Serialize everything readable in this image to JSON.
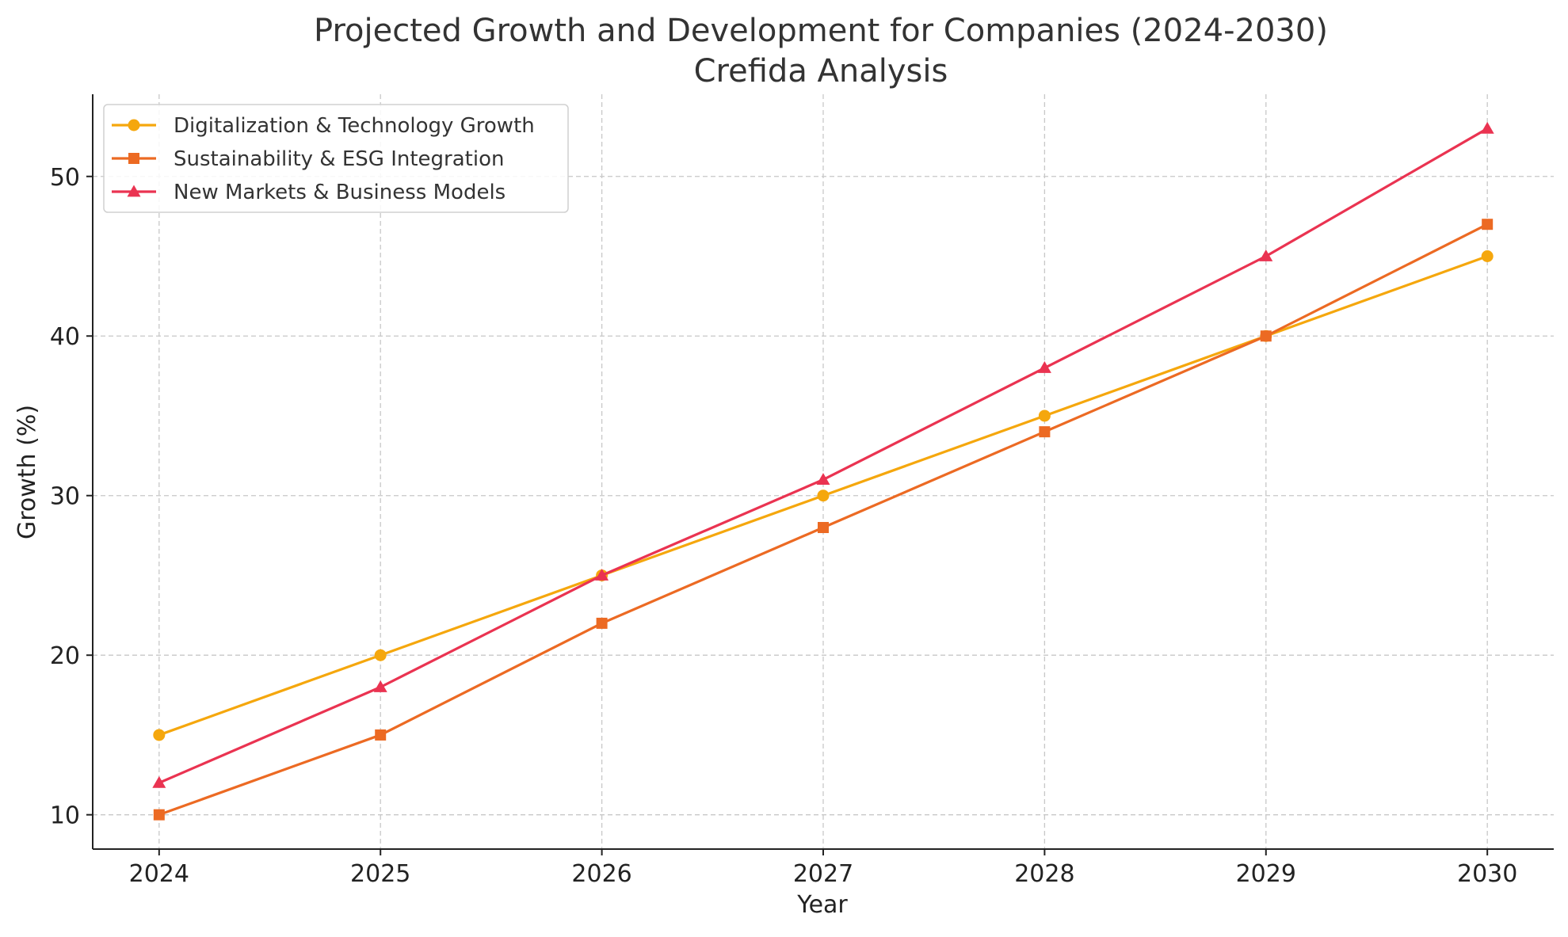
{
  "chart_data": {
    "type": "line",
    "title": "Projected Growth and Development for Companies (2024-2030)",
    "subtitle": "Crefida Analysis",
    "xlabel": "Year",
    "ylabel": "Growth (%)",
    "x": [
      2024,
      2025,
      2026,
      2027,
      2028,
      2029,
      2030
    ],
    "x_tick_labels": [
      "2024",
      "2025",
      "2026",
      "2027",
      "2028",
      "2029",
      "2030"
    ],
    "y_ticks": [
      10,
      20,
      30,
      40,
      50
    ],
    "y_tick_labels": [
      "10",
      "20",
      "30",
      "40",
      "50"
    ],
    "xlim": [
      2023.7,
      2030.3
    ],
    "ylim": [
      7.85,
      55.15
    ],
    "grid": true,
    "legend_position": "upper-left",
    "series": [
      {
        "name": "Digitalization & Technology Growth",
        "values": [
          15,
          20,
          25,
          30,
          35,
          40,
          45
        ],
        "color": "#F5A70D",
        "marker": "circle"
      },
      {
        "name": "Sustainability & ESG Integration",
        "values": [
          10,
          15,
          22,
          28,
          34,
          40,
          47
        ],
        "color": "#EC6A23",
        "marker": "square"
      },
      {
        "name": "New Markets & Business Models",
        "values": [
          12,
          18,
          25,
          31,
          38,
          45,
          53
        ],
        "color": "#EA3351",
        "marker": "triangle"
      }
    ]
  }
}
